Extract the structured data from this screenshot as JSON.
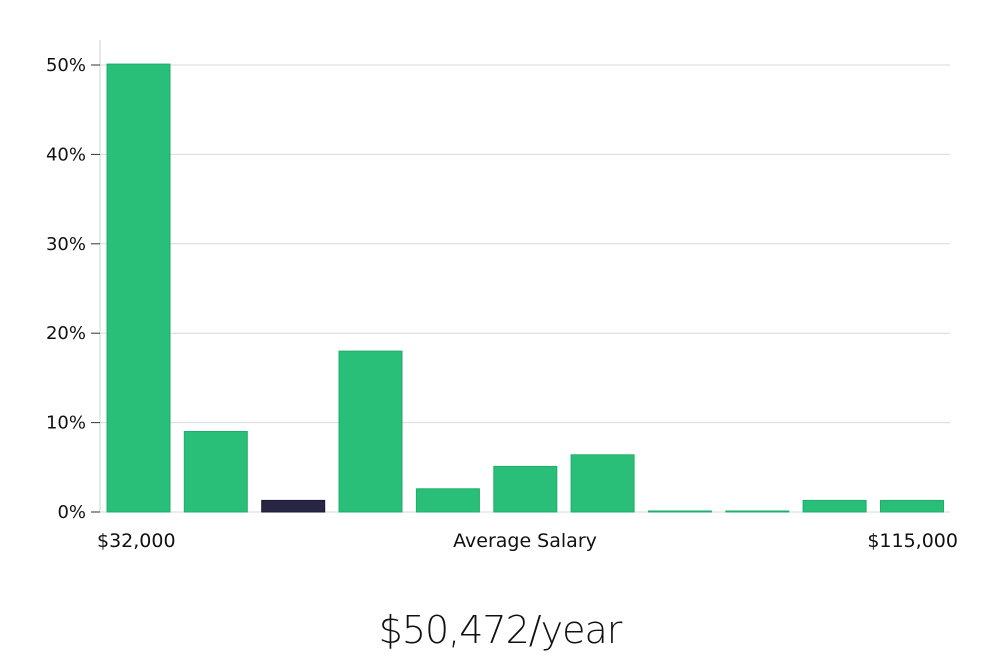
{
  "chart_data": {
    "type": "bar",
    "y_ticks": [
      "0%",
      "10%",
      "20%",
      "30%",
      "40%",
      "50%"
    ],
    "ylim": [
      0,
      52.5
    ],
    "values": [
      50.1,
      9.0,
      1.3,
      18.0,
      2.6,
      5.1,
      6.4,
      0.1,
      0.1,
      1.3,
      1.3
    ],
    "highlight_index": 2,
    "x_min_label": "$32,000",
    "x_max_label": "$115,000",
    "xlabel": "Average Salary",
    "grid": true,
    "colors": {
      "bar": "#29bf78",
      "bar_edge": "#1fae68",
      "highlight": "#272645",
      "grid": "#d9d9d9",
      "axis": "#d0d0d0"
    }
  },
  "salary_summary": "$50,472/year"
}
